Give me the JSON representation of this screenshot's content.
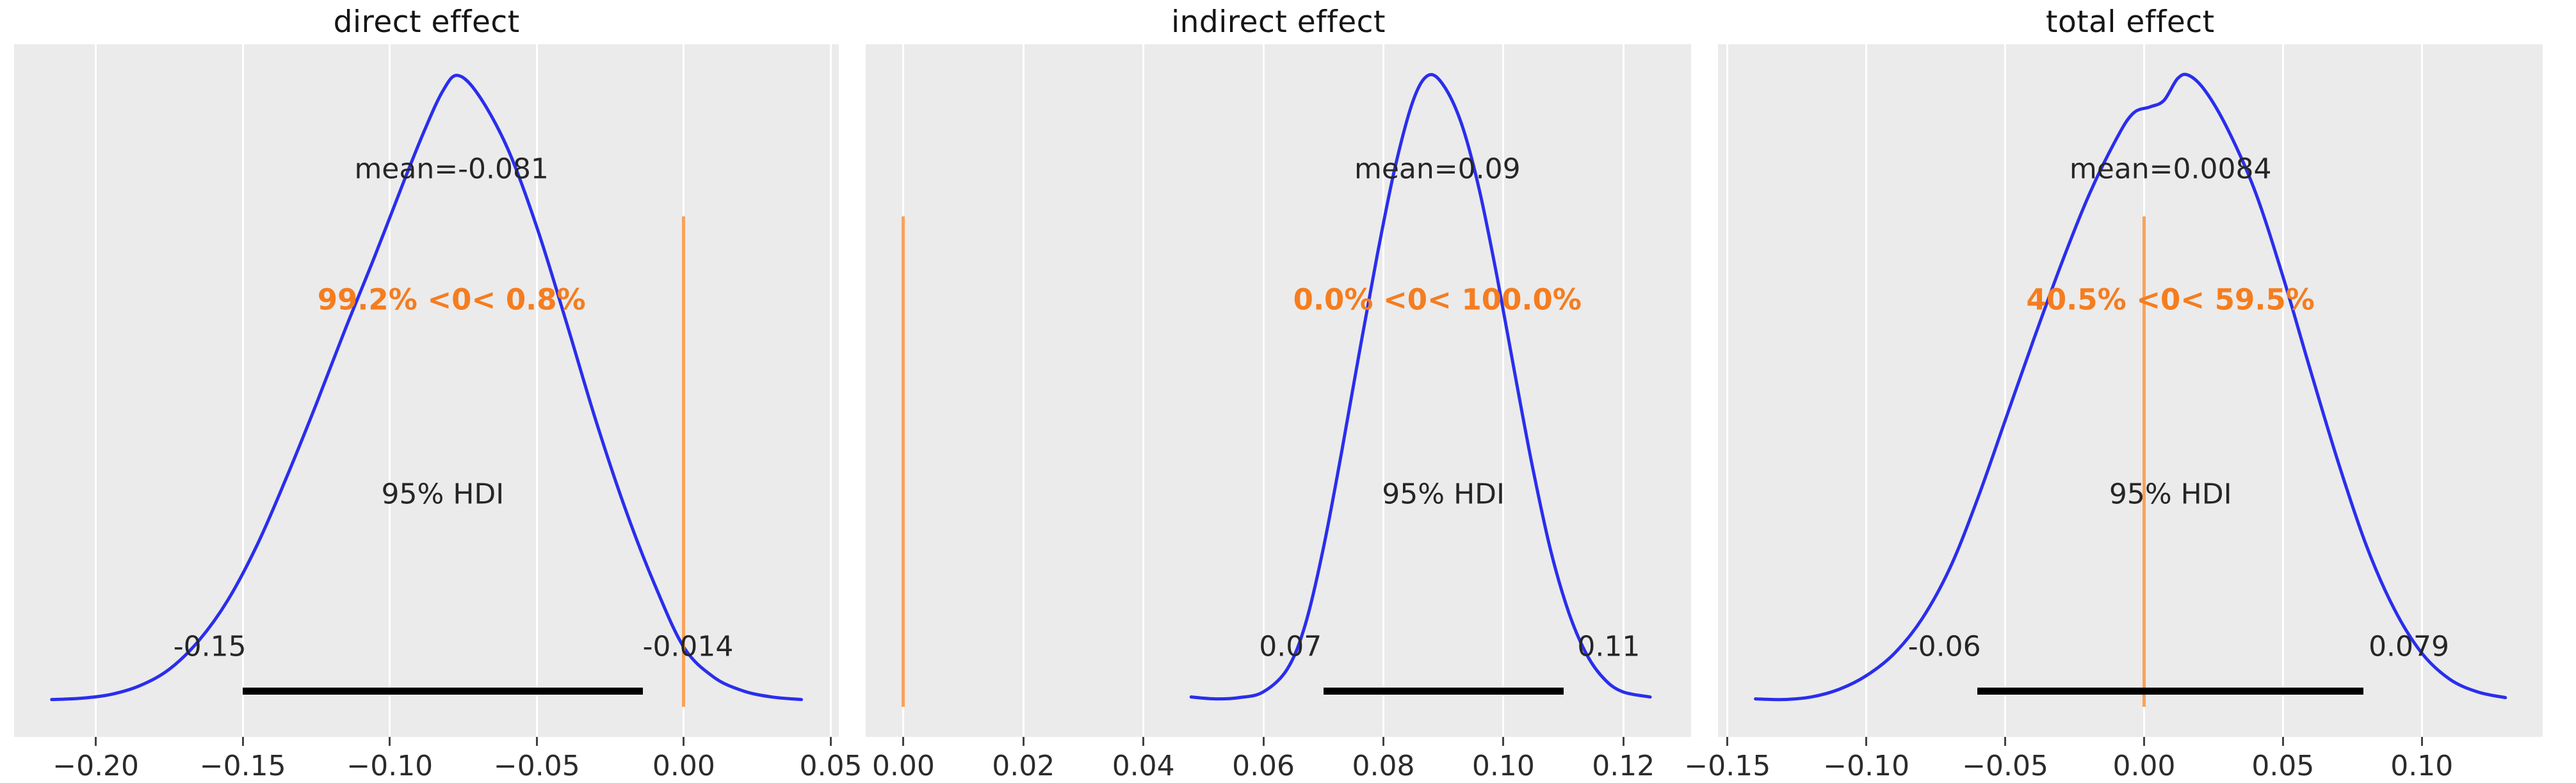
{
  "style": {
    "panel_background": "#ebebeb",
    "gridline_color": "#ffffff",
    "curve_blue": "#2a2eec",
    "ref_line_orange": "#f9a25a",
    "prob_text_orange": "#f57d1f",
    "hdi_bar_black": "#000000",
    "text_color": "#262626"
  },
  "chart_data": [
    {
      "type": "area",
      "kind": "posterior-kde",
      "title": "direct effect",
      "mean": -0.081,
      "mean_label": "mean=-0.081",
      "prob_label": "99.2% <0< 0.8%",
      "hdi_label": "95% HDI",
      "hdi": [
        -0.15,
        -0.014
      ],
      "hdi_lo_label": "-0.15",
      "hdi_hi_label": "-0.014",
      "ref_val": 0.0,
      "annotation_x": -0.079,
      "xlim": [
        -0.2278,
        0.0528
      ],
      "xticks": {
        "values": [
          -0.2,
          -0.15,
          -0.1,
          -0.05,
          0.0,
          0.05
        ],
        "labels": [
          "−0.20",
          "−0.15",
          "−0.10",
          "−0.05",
          "0.00",
          "0.05"
        ]
      },
      "curve": {
        "x": [
          -0.215,
          -0.205,
          -0.195,
          -0.185,
          -0.175,
          -0.165,
          -0.155,
          -0.145,
          -0.135,
          -0.125,
          -0.115,
          -0.105,
          -0.095,
          -0.088,
          -0.082,
          -0.077,
          -0.07,
          -0.06,
          -0.05,
          -0.04,
          -0.03,
          -0.02,
          -0.01,
          0.0,
          0.01,
          0.02,
          0.03,
          0.04
        ],
        "y": [
          0.012,
          0.014,
          0.02,
          0.034,
          0.06,
          0.105,
          0.17,
          0.258,
          0.365,
          0.48,
          0.6,
          0.715,
          0.835,
          0.915,
          0.975,
          1.0,
          0.97,
          0.885,
          0.76,
          0.61,
          0.455,
          0.315,
          0.195,
          0.095,
          0.048,
          0.026,
          0.016,
          0.012
        ]
      }
    },
    {
      "type": "area",
      "kind": "posterior-kde",
      "title": "indirect effect",
      "mean": 0.09,
      "mean_label": "mean=0.09",
      "prob_label": "0.0% <0< 100.0%",
      "hdi_label": "95% HDI",
      "hdi": [
        0.07,
        0.11
      ],
      "hdi_lo_label": "0.07",
      "hdi_hi_label": "0.11",
      "ref_val": 0.0,
      "annotation_x": 0.089,
      "xlim": [
        -0.00625,
        0.13125
      ],
      "xticks": {
        "values": [
          0.0,
          0.02,
          0.04,
          0.06,
          0.08,
          0.1,
          0.12
        ],
        "labels": [
          "0.00",
          "0.02",
          "0.04",
          "0.06",
          "0.08",
          "0.10",
          "0.12"
        ]
      },
      "curve": {
        "x": [
          0.048,
          0.052,
          0.056,
          0.06,
          0.064,
          0.067,
          0.07,
          0.073,
          0.076,
          0.079,
          0.082,
          0.085,
          0.0875,
          0.09,
          0.093,
          0.096,
          0.099,
          0.102,
          0.105,
          0.108,
          0.111,
          0.114,
          0.117,
          0.12,
          0.1245
        ],
        "y": [
          0.016,
          0.013,
          0.015,
          0.024,
          0.06,
          0.13,
          0.25,
          0.4,
          0.56,
          0.715,
          0.855,
          0.96,
          1.0,
          0.985,
          0.925,
          0.82,
          0.68,
          0.525,
          0.375,
          0.245,
          0.148,
          0.082,
          0.043,
          0.024,
          0.016
        ]
      }
    },
    {
      "type": "area",
      "kind": "posterior-kde",
      "title": "total effect",
      "mean": 0.0084,
      "mean_label": "mean=0.0084",
      "prob_label": "40.5% <0< 59.5%",
      "hdi_label": "95% HDI",
      "hdi": [
        -0.06,
        0.079
      ],
      "hdi_lo_label": "-0.06",
      "hdi_hi_label": "0.079",
      "ref_val": 0.0,
      "annotation_x": 0.0095,
      "xlim": [
        -0.1535,
        0.1435
      ],
      "xticks": {
        "values": [
          -0.15,
          -0.1,
          -0.05,
          0.0,
          0.05,
          0.1
        ],
        "labels": [
          "−0.15",
          "−0.10",
          "−0.05",
          "0.00",
          "0.05",
          "0.10"
        ]
      },
      "curve": {
        "x": [
          -0.14,
          -0.13,
          -0.12,
          -0.11,
          -0.1,
          -0.09,
          -0.08,
          -0.07,
          -0.06,
          -0.05,
          -0.04,
          -0.03,
          -0.02,
          -0.01,
          -0.004,
          0.002,
          0.007,
          0.012,
          0.016,
          0.022,
          0.03,
          0.04,
          0.05,
          0.06,
          0.07,
          0.08,
          0.09,
          0.1,
          0.11,
          0.12,
          0.13
        ],
        "y": [
          0.013,
          0.012,
          0.016,
          0.028,
          0.05,
          0.085,
          0.14,
          0.22,
          0.33,
          0.455,
          0.58,
          0.7,
          0.81,
          0.9,
          0.94,
          0.95,
          0.96,
          0.995,
          1.0,
          0.975,
          0.915,
          0.815,
          0.68,
          0.53,
          0.385,
          0.255,
          0.155,
          0.085,
          0.044,
          0.024,
          0.015
        ]
      }
    }
  ]
}
